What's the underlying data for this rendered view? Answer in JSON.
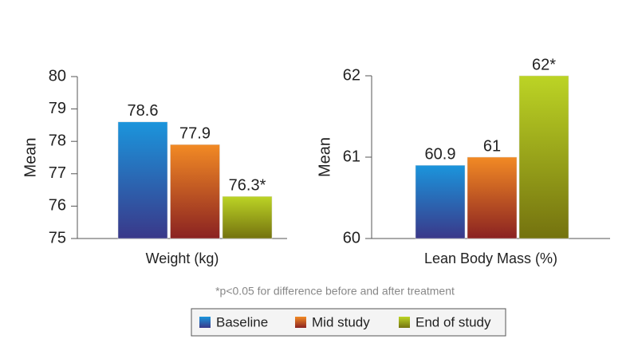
{
  "chart_data": [
    {
      "type": "bar",
      "x_label": "Weight (kg)",
      "y_label": "Mean",
      "ylim": [
        75,
        80
      ],
      "yticks": [
        75,
        76,
        77,
        78,
        79,
        80
      ],
      "series": [
        {
          "name": "Baseline",
          "color": "#1b95dc",
          "values": [
            78.6
          ]
        },
        {
          "name": "Mid study",
          "color": "#f28a24",
          "values": [
            77.9
          ]
        },
        {
          "name": "End of study",
          "color": "#bcd425",
          "values": [
            76.3
          ],
          "value_labels": [
            "76.3*"
          ]
        }
      ]
    },
    {
      "type": "bar",
      "x_label": "Lean Body Mass (%)",
      "y_label": "Mean",
      "ylim": [
        60,
        62
      ],
      "yticks": [
        60,
        61,
        62
      ],
      "series": [
        {
          "name": "Baseline",
          "color": "#1b95dc",
          "values": [
            60.9
          ]
        },
        {
          "name": "Mid study",
          "color": "#f28a24",
          "values": [
            61
          ]
        },
        {
          "name": "End of study",
          "color": "#bcd425",
          "values": [
            62
          ],
          "value_labels": [
            "62*"
          ]
        }
      ]
    }
  ],
  "footnote": "*p<0.05 for difference before and after treatment"
}
